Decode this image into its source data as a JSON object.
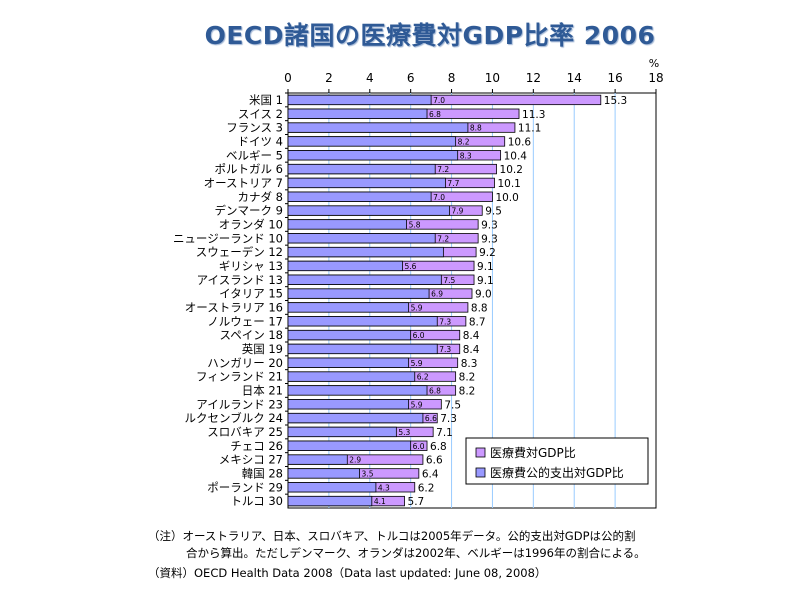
{
  "title": "OECD諸国の医療費対GDP比率  2006",
  "notes": {
    "line1": "（注）オーストラリア、日本、スロバキア、トルコは2005年データ。公的支出対GDPは公的割",
    "line2": "合から算出。ただしデンマーク、オランダは2002年、ベルギーは1996年の割合による。",
    "line3": "（資料）OECD Health Data 2008（Data last updated: June 08, 2008）"
  },
  "chart_data": {
    "type": "bar",
    "orientation": "horizontal",
    "unit_label": "%",
    "xlim": [
      0,
      18
    ],
    "xticks": [
      0,
      2,
      4,
      6,
      8,
      10,
      12,
      14,
      16,
      18
    ],
    "grid": true,
    "legend_position": "bottom-right",
    "categories": [
      "米国 1",
      "スイス 2",
      "フランス 3",
      "ドイツ 4",
      "ベルギー 5",
      "ポルトガル 6",
      "オーストリア 7",
      "カナダ 8",
      "デンマーク 9",
      "オランダ 10",
      "ニュージーランド 10",
      "スウェーデン 12",
      "ギリシャ 13",
      "アイスランド 13",
      "イタリア 15",
      "オーストラリア 16",
      "ノルウェー 17",
      "スペイン 18",
      "英国 19",
      "ハンガリー 20",
      "フィンランド 21",
      "日本 21",
      "アイルランド 23",
      "ルクセンブルク 24",
      "スロバキア 25",
      "チェコ 26",
      "メキシコ 27",
      "韓国 28",
      "ポーランド 29",
      "トルコ 30"
    ],
    "series": [
      {
        "name": "医療費対GDP比",
        "color": "#cc99ff",
        "values": [
          15.3,
          11.3,
          11.1,
          10.6,
          10.4,
          10.2,
          10.1,
          10.0,
          9.5,
          9.3,
          9.3,
          9.2,
          9.1,
          9.1,
          9.0,
          8.8,
          8.7,
          8.4,
          8.4,
          8.3,
          8.2,
          8.2,
          7.5,
          7.3,
          7.1,
          6.8,
          6.6,
          6.4,
          6.2,
          5.7
        ]
      },
      {
        "name": "医療費公的支出対GDP比",
        "color": "#9999ff",
        "values": [
          7.0,
          6.8,
          8.8,
          8.2,
          8.3,
          7.2,
          7.7,
          7.0,
          7.9,
          5.8,
          7.2,
          7.6,
          5.6,
          7.5,
          6.9,
          5.9,
          7.3,
          6.0,
          7.3,
          5.9,
          6.2,
          6.8,
          5.9,
          6.6,
          5.3,
          6.0,
          2.9,
          3.5,
          4.3,
          4.1
        ]
      }
    ],
    "public_labels": [
      "7.0",
      "6.8",
      "8.8",
      "8.2",
      "8.3",
      "7.2",
      "7.7",
      "7.0",
      "7.9",
      "5.8",
      "7.2",
      "",
      "5.6",
      "7.5",
      "6.9",
      "5.9",
      "7.3",
      "6.0",
      "7.3",
      "5.9",
      "6.2",
      "6.8",
      "5.9",
      "6.6",
      "5.3",
      "6.0",
      "2.9",
      "3.5",
      "4.3",
      "4.1"
    ]
  }
}
